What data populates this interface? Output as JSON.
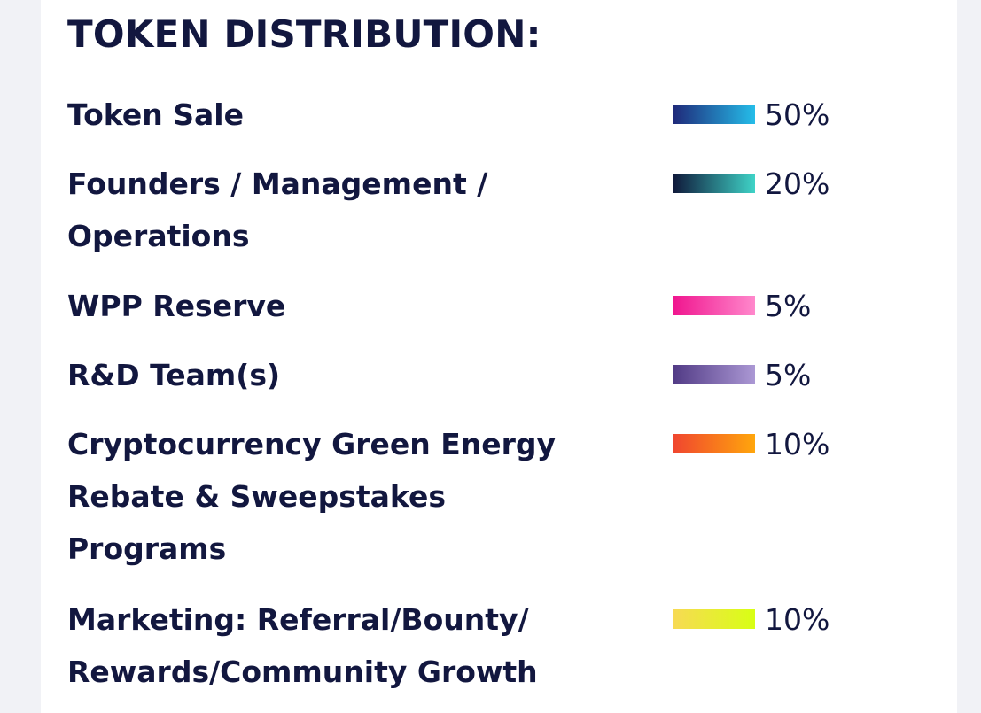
{
  "heading": "TOKEN DISTRIBUTION:",
  "rows": [
    {
      "label_lines": [
        "Token Sale"
      ],
      "percent": "50%",
      "bar_colors": [
        "#1f2a7a",
        "#25bde9"
      ]
    },
    {
      "label_lines": [
        "Founders / Management /",
        "Operations"
      ],
      "percent": "20%",
      "bar_colors": [
        "#101a3b",
        "#3fd3c7"
      ]
    },
    {
      "label_lines": [
        "WPP Reserve"
      ],
      "percent": "5%",
      "bar_colors": [
        "#f0168f",
        "#ff88cc"
      ]
    },
    {
      "label_lines": [
        "R&D Team(s)"
      ],
      "percent": "5%",
      "bar_colors": [
        "#523b86",
        "#ab98d4"
      ]
    },
    {
      "label_lines": [
        "Cryptocurrency Green Energy",
        "Rebate & Sweepstakes",
        "Programs"
      ],
      "percent": "10%",
      "bar_colors": [
        "#f0462f",
        "#ffa60c"
      ]
    },
    {
      "label_lines": [
        "Marketing: Referral/Bounty/",
        "Rewards/Community Growth"
      ],
      "percent": "10%",
      "bar_colors": [
        "#f7da54",
        "#d8ff14"
      ]
    }
  ],
  "colors": {
    "text": "#12173f",
    "card_background": "#ffffff",
    "page_background": "#f1f2f6"
  }
}
